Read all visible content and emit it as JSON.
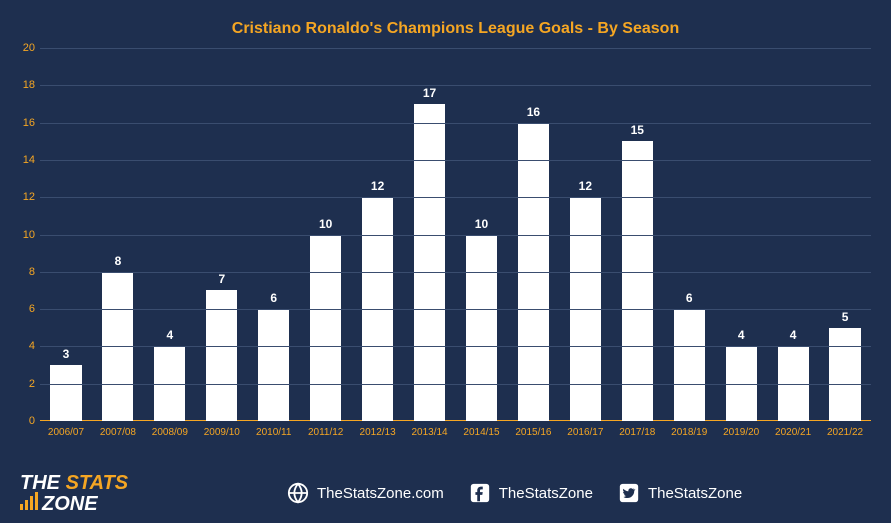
{
  "chart": {
    "title": "Cristiano Ronaldo's Champions League Goals - By Season",
    "type": "bar",
    "categories": [
      "2006/07",
      "2007/08",
      "2008/09",
      "2009/10",
      "2010/11",
      "2011/12",
      "2012/13",
      "2013/14",
      "2014/15",
      "2015/16",
      "2016/17",
      "2017/18",
      "2018/19",
      "2019/20",
      "2020/21",
      "2021/22"
    ],
    "values": [
      3,
      8,
      4,
      7,
      6,
      10,
      12,
      17,
      10,
      16,
      12,
      15,
      6,
      4,
      4,
      5
    ],
    "ymin": 0,
    "ymax": 20,
    "ytick_step": 2,
    "bar_color": "#ffffff",
    "background_color": "#1e2f4f",
    "grid_color": "#3a4d6f",
    "axis_color": "#f5a623",
    "title_color": "#f5a623",
    "title_fontsize": 16,
    "label_color": "#f5a623",
    "value_label_color": "#ffffff",
    "axis_fontsize": 11,
    "value_fontsize": 12
  },
  "footer": {
    "logo_line1_pre": "THE ",
    "logo_line1_accent": "STATS",
    "logo_line2": "ZONE",
    "website": "TheStatsZone.com",
    "facebook": "TheStatsZone",
    "twitter": "TheStatsZone",
    "text_color": "#ffffff",
    "accent_color": "#f5a623"
  }
}
